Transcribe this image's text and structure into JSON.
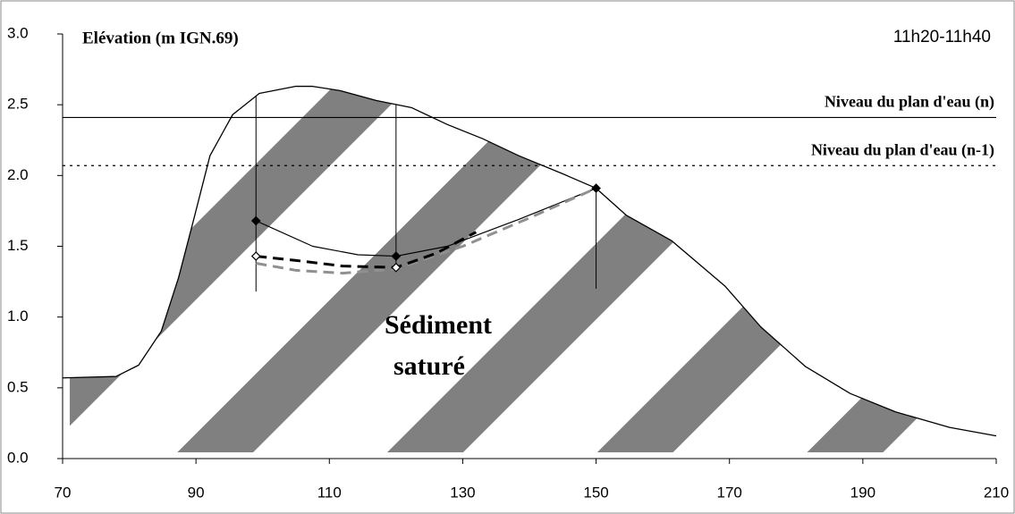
{
  "chart_data": {
    "type": "line",
    "title": "Elévation (m IGN.69)",
    "subtitle": "11h20-11h40",
    "annotation": [
      "Sédiment",
      "saturé"
    ],
    "xlim": [
      70,
      210
    ],
    "xticks": [
      70,
      90,
      110,
      130,
      150,
      170,
      190,
      210
    ],
    "ylim": [
      0,
      3
    ],
    "yticks": [
      {
        "value": 0,
        "label": "0.0"
      },
      0.5,
      {
        "value": 1,
        "label": "1.0"
      },
      1.5,
      {
        "value": 2,
        "label": "2.0"
      },
      2.5,
      {
        "value": 3,
        "label": "3.0"
      }
    ],
    "hlines": [
      {
        "label": "Niveau du plan d'eau (n)",
        "value": 2.41,
        "color": "#000000",
        "dash": "none"
      },
      {
        "label": "Niveau du plan d'eau (n-1)",
        "value": 2.07,
        "color": "#000000",
        "dash": "3 5"
      }
    ],
    "series": [
      {
        "color": "#000000",
        "width": 1.3,
        "dash": "none",
        "x": [
          70,
          78,
          81.4,
          84.8,
          87.4,
          89.5,
          92.1,
          95.5,
          99.5,
          104.9,
          107.5,
          111.6,
          117,
          122.3,
          127.7,
          133,
          138.4,
          145.1,
          150,
          154.5,
          161.3,
          169.3,
          174.7,
          181.4,
          188.1,
          194.9,
          203,
          210
        ],
        "values": [
          0.57,
          0.58,
          0.66,
          0.9,
          1.28,
          1.66,
          2.14,
          2.43,
          2.58,
          2.63,
          2.63,
          2.6,
          2.53,
          2.48,
          2.36,
          2.26,
          2.14,
          2.01,
          1.91,
          1.72,
          1.54,
          1.22,
          0.93,
          0.65,
          0.46,
          0.33,
          0.22,
          0.16
        ]
      },
      {
        "color": "#000000",
        "width": 1.2,
        "dash": "none",
        "x": [
          99,
          107.5,
          114.3,
          120,
          127.7,
          138.4,
          150
        ],
        "values": [
          1.68,
          1.5,
          1.44,
          1.43,
          1.5,
          1.69,
          1.91
        ]
      },
      {
        "color": "#909090",
        "width": 3,
        "dash": "12 7",
        "x": [
          99,
          105,
          112,
          120,
          130,
          140,
          150
        ],
        "values": [
          1.38,
          1.33,
          1.31,
          1.34,
          1.5,
          1.7,
          1.91
        ]
      },
      {
        "color": "#000000",
        "width": 3,
        "dash": "12 7",
        "x": [
          99,
          105,
          112,
          120,
          126,
          132
        ],
        "values": [
          1.43,
          1.4,
          1.36,
          1.35,
          1.45,
          1.6
        ]
      }
    ],
    "measurements": [
      {
        "color": "#000000",
        "filled": true,
        "x": [
          99,
          120,
          150
        ],
        "values": [
          1.68,
          1.43,
          1.91
        ]
      },
      {
        "color": "#000000",
        "filled": false,
        "x": [
          99,
          120
        ],
        "values": [
          1.43,
          1.35
        ]
      }
    ],
    "piezometers": {
      "x": [
        99,
        120,
        150
      ],
      "bottom": [
        1.18,
        1.35,
        1.2
      ]
    }
  }
}
